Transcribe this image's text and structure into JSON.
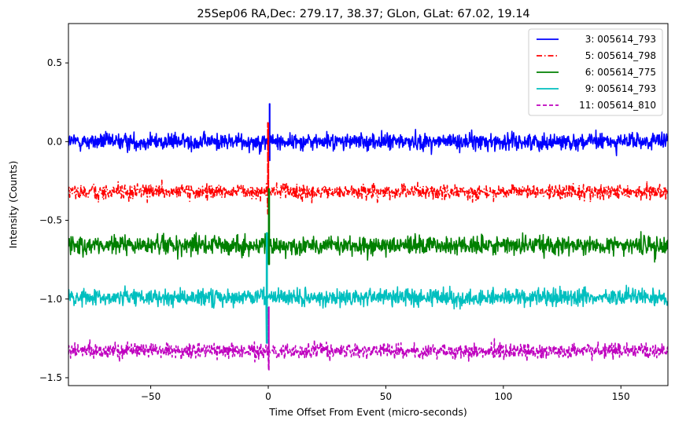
{
  "chart_data": {
    "type": "line",
    "title": "25Sep06 RA,Dec:  279.17,  38.37; GLon, GLat:   67.02,  19.14",
    "xlabel": "Time Offset From Event (micro-seconds)",
    "ylabel": "Intensity (Counts)",
    "xlim": [
      -85,
      170
    ],
    "ylim": [
      -1.55,
      0.75
    ],
    "xticks": [
      -50,
      0,
      50,
      100,
      150
    ],
    "yticks": [
      0.5,
      0.0,
      -0.5,
      -1.0,
      -1.5
    ],
    "xtick_labels": [
      "−50",
      "0",
      "50",
      "100",
      "150"
    ],
    "ytick_labels": [
      "0.5",
      "0.0",
      "−0.5",
      "−1.0",
      "−1.5"
    ],
    "legend_position": "top-right",
    "series": [
      {
        "name": "3: 005614_793",
        "color": "#0000ff",
        "style": "solid",
        "baseline": 0.0,
        "noise": 0.045,
        "spike": {
          "x": 0.6,
          "min": -0.12,
          "max": 0.24
        }
      },
      {
        "name": "5: 005614_798",
        "color": "#ff0000",
        "style": "dashdot",
        "baseline": -0.32,
        "noise": 0.04,
        "spike": {
          "x": 0.0,
          "min": -0.46,
          "max": 0.12
        }
      },
      {
        "name": "6: 005614_775",
        "color": "#008000",
        "style": "solid",
        "baseline": -0.66,
        "noise": 0.05,
        "spike": {
          "x": 0.3,
          "min": -0.78,
          "max": -0.3
        }
      },
      {
        "name": "9: 005614_793",
        "color": "#00bfbf",
        "style": "solid",
        "baseline": -0.99,
        "noise": 0.045,
        "spike": {
          "x": -0.6,
          "min": -1.28,
          "max": -0.58
        }
      },
      {
        "name": "11: 005614_810",
        "color": "#bf00bf",
        "style": "dashed",
        "baseline": -1.33,
        "noise": 0.04,
        "spike": {
          "x": 0.2,
          "min": -1.45,
          "max": -1.05
        }
      }
    ]
  }
}
